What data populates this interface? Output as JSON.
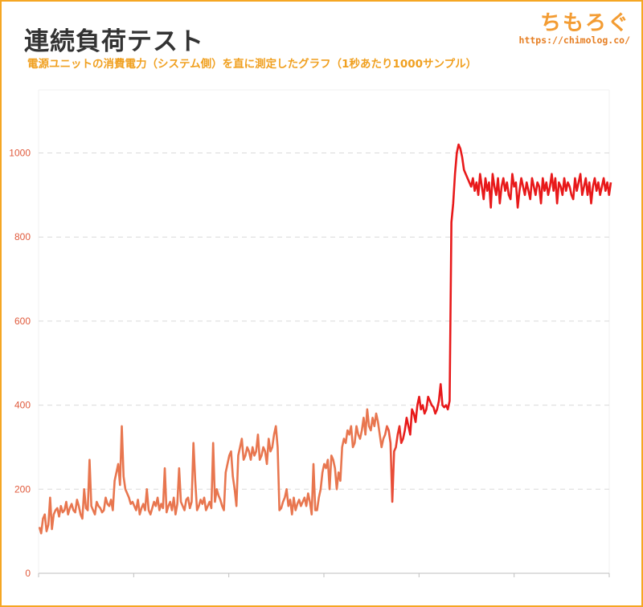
{
  "header": {
    "title": "連続負荷テスト",
    "subtitle": "電源ユニットの消費電力（システム側）を直に測定したグラフ（1秒あたり1000サンプル）"
  },
  "logo": {
    "name": "ちもろぐ",
    "url": "https://chimolog.co/"
  },
  "colors": {
    "frame": "#f5a623",
    "title": "#333333",
    "subtitle": "#f0a020",
    "axis_labels": "#e05a3c",
    "line_low": "#e8764f",
    "line_high": "#e8191a",
    "grid": "#d9d9d9"
  },
  "chart_data": {
    "type": "line",
    "title": "",
    "xlabel": "",
    "ylabel": "",
    "ylim": [
      0,
      1150
    ],
    "yticks": [
      0,
      200,
      400,
      600,
      800,
      1000
    ],
    "grid": "horizontal dashed",
    "series": [
      {
        "values": [
          110,
          95,
          130,
          140,
          100,
          115,
          180,
          105,
          140,
          150,
          155,
          135,
          160,
          145,
          150,
          170,
          140,
          155,
          165,
          150,
          145,
          175,
          160,
          140,
          130,
          200,
          155,
          150,
          270,
          160,
          150,
          140,
          170,
          160,
          155,
          145,
          150,
          180,
          165,
          160,
          175,
          150,
          220,
          240,
          260,
          210,
          350,
          230,
          200,
          190,
          180,
          165,
          170,
          160,
          150,
          175,
          140,
          155,
          165,
          150,
          200,
          150,
          140,
          155,
          170,
          160,
          180,
          150,
          165,
          155,
          250,
          145,
          160,
          170,
          150,
          180,
          140,
          165,
          250,
          170,
          160,
          150,
          175,
          180,
          155,
          170,
          310,
          220,
          150,
          160,
          175,
          165,
          180,
          150,
          160,
          170,
          155,
          310,
          170,
          200,
          185,
          175,
          160,
          150,
          240,
          260,
          280,
          290,
          230,
          200,
          160,
          280,
          300,
          320,
          270,
          280,
          300,
          290,
          270,
          300,
          280,
          290,
          330,
          270,
          280,
          300,
          290,
          260,
          320,
          290,
          300,
          330,
          350,
          300,
          150,
          155,
          170,
          180,
          200,
          160,
          175,
          140,
          180,
          150,
          165,
          175,
          160,
          170,
          180,
          160,
          190,
          170,
          140,
          260,
          150,
          150,
          180,
          200,
          240,
          260,
          250,
          270,
          200,
          280,
          270,
          250,
          200,
          240,
          220,
          300,
          320,
          310,
          340,
          330,
          350,
          300,
          310,
          350,
          330,
          320,
          340,
          370,
          330,
          390,
          350,
          340,
          370,
          350,
          380,
          360,
          330,
          300,
          320,
          330,
          350,
          340,
          310,
          170,
          290,
          300,
          330,
          350,
          310,
          320,
          340,
          370,
          350,
          330,
          390,
          380,
          360,
          400,
          420,
          390,
          400,
          380,
          390,
          420,
          410,
          400,
          395,
          380,
          390,
          410,
          450,
          400,
          395,
          400,
          390,
          410,
          835,
          880,
          950,
          1000,
          1020,
          1010,
          990,
          960,
          950,
          940,
          930,
          920,
          940,
          910,
          930,
          900,
          950,
          920,
          890,
          940,
          910,
          930,
          870,
          950,
          920,
          900,
          940,
          880,
          920,
          940,
          910,
          930,
          900,
          890,
          950,
          920,
          930,
          870,
          910,
          940,
          920,
          900,
          930,
          910,
          890,
          940,
          920,
          900,
          930,
          920,
          880,
          940,
          910,
          930,
          900,
          920,
          950,
          910,
          940,
          880,
          930,
          920,
          900,
          940,
          910,
          930,
          920,
          900,
          890,
          940,
          910,
          930,
          950,
          900,
          920,
          940,
          900,
          930,
          880,
          920,
          940,
          910,
          930,
          900,
          920,
          940,
          910,
          930,
          900,
          930
        ]
      }
    ]
  }
}
